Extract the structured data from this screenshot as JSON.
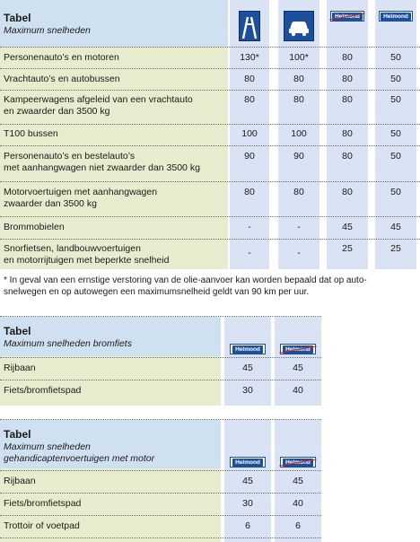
{
  "table1": {
    "title": "Tabel",
    "subtitle": "Maximum snelheden",
    "columns": [
      {
        "icon": "motorway-sign-icon"
      },
      {
        "icon": "expressway-car-sign-icon"
      },
      {
        "icon": "built-up-area-sign-icon",
        "sign_text": "Helmond"
      },
      {
        "icon": "end-built-up-area-sign-icon",
        "sign_text": "Helmond"
      }
    ],
    "rows": [
      {
        "label": "Personenauto’s en motoren",
        "values": [
          "130*",
          "100*",
          "80",
          "50"
        ]
      },
      {
        "label": "Vrachtauto’s en autobussen",
        "values": [
          "80",
          "80",
          "80",
          "50"
        ]
      },
      {
        "label": "Kampeerwagens  afgeleid van een vrachtauto\nen zwaarder dan 3500 kg",
        "values": [
          "80",
          "80",
          "80",
          "50"
        ]
      },
      {
        "label": "T100 bussen",
        "values": [
          "100",
          "100",
          "80",
          "50"
        ]
      },
      {
        "label": "Personenauto’s en bestelauto’s\nmet aanhangwagen niet zwaarder dan 3500 kg",
        "values": [
          "90",
          "90",
          "80",
          "50"
        ]
      },
      {
        "label": "Motorvoertuigen met aanhangwagen\nzwaarder dan 3500 kg",
        "values": [
          "80",
          "80",
          "80",
          "50"
        ]
      },
      {
        "label": "Brommobielen",
        "values": [
          "-",
          "-",
          "45",
          "45"
        ]
      },
      {
        "label": "Snorfietsen, landbouwvoertuigen\nen motorrijtuigen met beperkte snelheid",
        "values": [
          "-",
          "-",
          "25",
          "25"
        ]
      }
    ],
    "footnote": "* In geval van een ernstige verstoring van de olie-aanvoer kan worden bepaald dat op auto-\nsnelwegen en op autowegen een maximumsnelheid geldt van 90 km per uur."
  },
  "table2": {
    "title": "Tabel",
    "subtitle": "Maximum snelheden bromfiets",
    "columns": [
      {
        "icon": "built-up-area-sign-icon",
        "sign_text": "Helmond"
      },
      {
        "icon": "end-built-up-area-sign-icon",
        "sign_text": "Helmond"
      }
    ],
    "rows": [
      {
        "label": "Rijbaan",
        "values": [
          "45",
          "45"
        ]
      },
      {
        "label": "Fiets/bromfietspad",
        "values": [
          "30",
          "40"
        ]
      }
    ]
  },
  "table3": {
    "title": "Tabel",
    "subtitle": "Maximum snelheden\ngehandicaptenvoertuigen met motor",
    "columns": [
      {
        "icon": "built-up-area-sign-icon",
        "sign_text": "Helmond"
      },
      {
        "icon": "end-built-up-area-sign-icon",
        "sign_text": "Helmond"
      }
    ],
    "rows": [
      {
        "label": "Rijbaan",
        "values": [
          "45",
          "45"
        ]
      },
      {
        "label": "Fiets/bromfietspad",
        "values": [
          "30",
          "40"
        ]
      },
      {
        "label": "Trottoir of voetpad",
        "values": [
          "6",
          "6"
        ]
      }
    ]
  },
  "colors": {
    "label_bg": "#e6edcf",
    "column_bg": "#d9e3f4",
    "sign_blue": "#1c4f9c",
    "strike_red": "#d42020"
  }
}
